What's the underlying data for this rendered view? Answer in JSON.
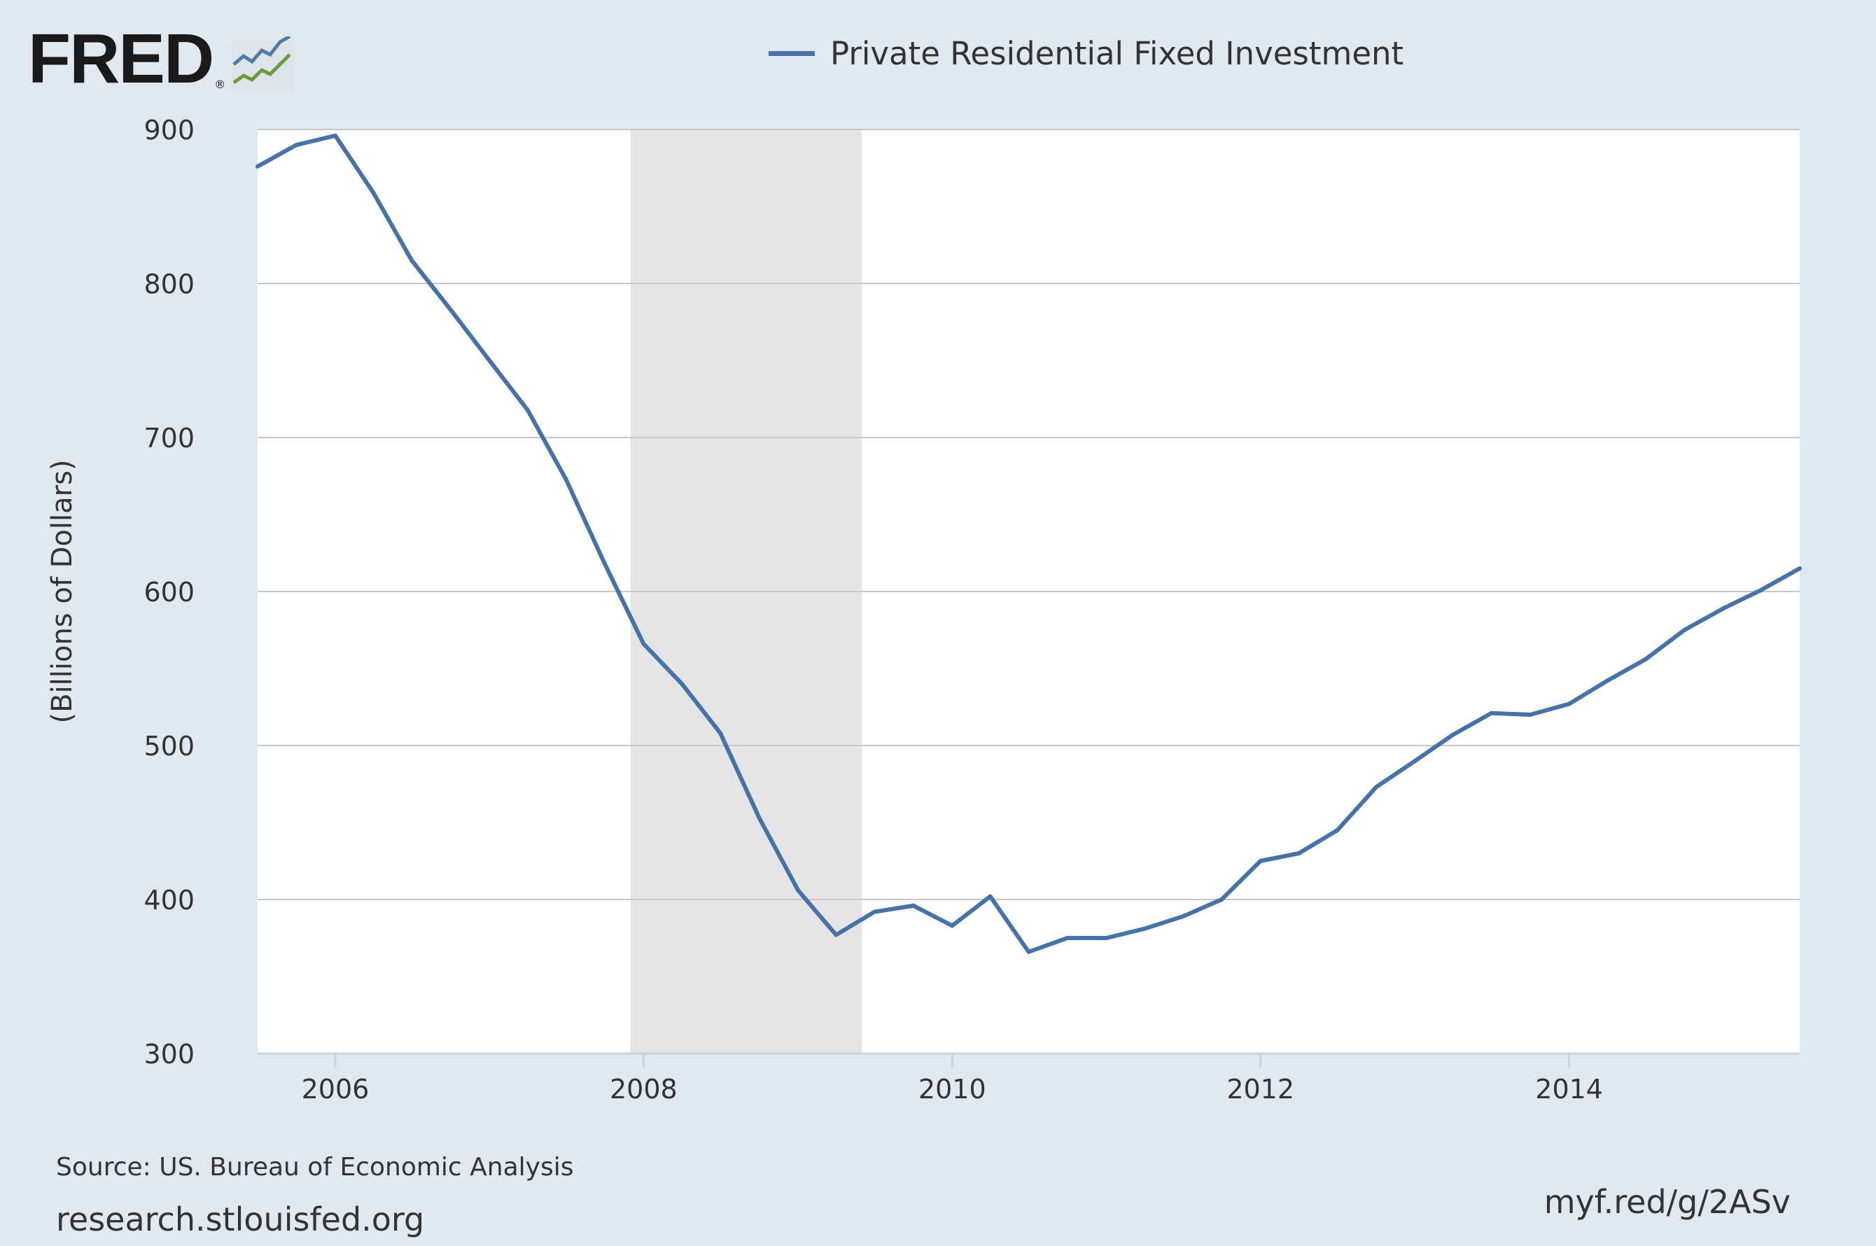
{
  "logo": {
    "text": "FRED",
    "reg": "®"
  },
  "legend": {
    "label": "Private Residential Fixed Investment",
    "color": "#4572a7"
  },
  "footer": {
    "source": "Source: US. Bureau of Economic Analysis",
    "site": "research.stlouisfed.org",
    "short_url": "myf.red/g/2ASv"
  },
  "chart_data": {
    "type": "line",
    "title": "",
    "xlabel": "",
    "ylabel": "(Billions of Dollars)",
    "ylim": [
      300,
      900
    ],
    "xlim": [
      "2005-07-01",
      "2015-07-01"
    ],
    "yticks": [
      300,
      400,
      500,
      600,
      700,
      800,
      900
    ],
    "xticks": [
      "2006",
      "2008",
      "2010",
      "2012",
      "2014"
    ],
    "grid": true,
    "legend_position": "top",
    "recession": {
      "start": "2007-12-01",
      "end": "2009-06-01",
      "color": "#e5e5e5"
    },
    "series": [
      {
        "name": "Private Residential Fixed Investment",
        "color": "#4572a7",
        "x": [
          "2005-07-01",
          "2005-10-01",
          "2006-01-01",
          "2006-04-01",
          "2006-07-01",
          "2006-10-01",
          "2007-01-01",
          "2007-04-01",
          "2007-07-01",
          "2007-10-01",
          "2008-01-01",
          "2008-04-01",
          "2008-07-01",
          "2008-10-01",
          "2009-01-01",
          "2009-04-01",
          "2009-07-01",
          "2009-10-01",
          "2010-01-01",
          "2010-04-01",
          "2010-07-01",
          "2010-10-01",
          "2011-01-01",
          "2011-04-01",
          "2011-07-01",
          "2011-10-01",
          "2012-01-01",
          "2012-04-01",
          "2012-07-01",
          "2012-10-01",
          "2013-01-01",
          "2013-04-01",
          "2013-07-01",
          "2013-10-01",
          "2014-01-01",
          "2014-04-01",
          "2014-07-01",
          "2014-10-01",
          "2015-01-01",
          "2015-04-01",
          "2015-07-01"
        ],
        "values": [
          876,
          890,
          896,
          859,
          815,
          783,
          750,
          718,
          673,
          618,
          566,
          540,
          508,
          453,
          406,
          377,
          392,
          396,
          383,
          402,
          366,
          375,
          375,
          381,
          389,
          400,
          425,
          430,
          445,
          473,
          490,
          507,
          521,
          520,
          527,
          542,
          556,
          575,
          589,
          601,
          615
        ]
      }
    ]
  }
}
